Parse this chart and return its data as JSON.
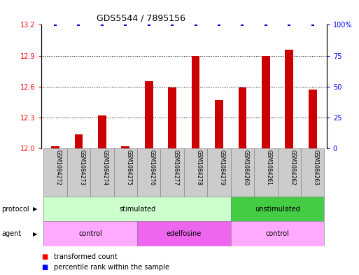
{
  "title": "GDS5544 / 7895156",
  "samples": [
    "GSM1084272",
    "GSM1084273",
    "GSM1084274",
    "GSM1084275",
    "GSM1084276",
    "GSM1084277",
    "GSM1084278",
    "GSM1084279",
    "GSM1084260",
    "GSM1084261",
    "GSM1084262",
    "GSM1084263"
  ],
  "bar_values": [
    12.02,
    12.14,
    12.32,
    12.02,
    12.65,
    12.59,
    12.9,
    12.47,
    12.59,
    12.9,
    12.96,
    12.57
  ],
  "percentile_values": [
    100,
    100,
    100,
    100,
    100,
    100,
    100,
    100,
    100,
    100,
    100,
    100
  ],
  "bar_color": "#cc0000",
  "dot_color": "#0000cc",
  "ylim_left": [
    12.0,
    13.2
  ],
  "ylim_right": [
    0,
    100
  ],
  "yticks_left": [
    12.0,
    12.3,
    12.6,
    12.9,
    13.2
  ],
  "yticks_right": [
    0,
    25,
    50,
    75,
    100
  ],
  "ytick_labels_right": [
    "0",
    "25",
    "50",
    "75",
    "100%"
  ],
  "gridlines": [
    12.3,
    12.6,
    12.9
  ],
  "stim_color": "#ccffcc",
  "unstim_color": "#44cc44",
  "ctrl_color": "#ffaaff",
  "edel_color": "#ee66ee",
  "sample_box_color": "#cccccc",
  "background_color": "#ffffff"
}
